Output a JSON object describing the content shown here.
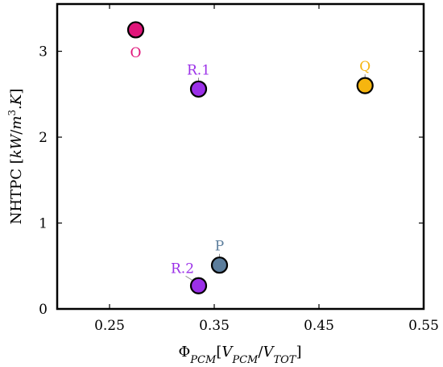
{
  "chart_data": {
    "type": "scatter",
    "xlabel": "Φ_PCM[V_PCM/V_TOT]",
    "ylabel": "NHTPC [kW/m³.K]",
    "xlim": [
      0.2,
      0.55
    ],
    "ylim": [
      0,
      3.55
    ],
    "xticks": [
      "0.25",
      "0.35",
      "0.45",
      "0.55"
    ],
    "xtick_values": [
      0.25,
      0.35,
      0.45,
      0.55
    ],
    "yticks": [
      "0",
      "1",
      "2",
      "3"
    ],
    "ytick_values": [
      0,
      1,
      2,
      3
    ],
    "grid": false,
    "points": [
      {
        "label": "O",
        "x": 0.275,
        "y": 3.25,
        "color": "#e0157a",
        "label_pos": "below"
      },
      {
        "label": "R.1",
        "x": 0.335,
        "y": 2.56,
        "color": "#9b30e8",
        "label_pos": "above"
      },
      {
        "label": "Q",
        "x": 0.494,
        "y": 2.6,
        "color": "#f6b50f",
        "label_pos": "above"
      },
      {
        "label": "P",
        "x": 0.355,
        "y": 0.51,
        "color": "#5b7d9c",
        "label_pos": "above"
      },
      {
        "label": "R.2",
        "x": 0.335,
        "y": 0.27,
        "color": "#9b30e8",
        "label_pos": "upper-left"
      }
    ]
  }
}
